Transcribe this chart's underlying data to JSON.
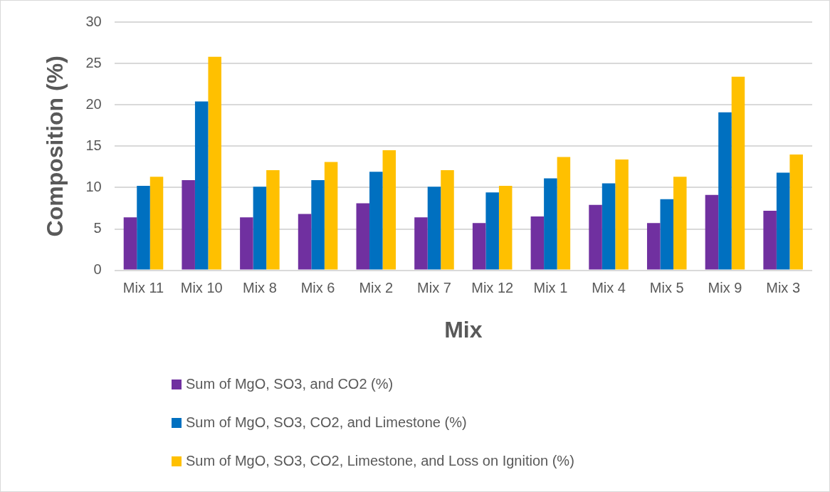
{
  "chart_data": {
    "type": "bar",
    "xlabel": "Mix",
    "ylabel": "Composition (%)",
    "categories": [
      "Mix 11",
      "Mix 10",
      "Mix 8",
      "Mix 6",
      "Mix 2",
      "Mix 7",
      "Mix 12",
      "Mix 1",
      "Mix 4",
      "Mix 5",
      "Mix 9",
      "Mix 3"
    ],
    "series": [
      {
        "name": "Sum of MgO, SO3, and CO2 (%)",
        "color": "#7030a0",
        "values": [
          6.4,
          10.9,
          6.4,
          6.8,
          8.1,
          6.4,
          5.7,
          6.5,
          7.9,
          5.7,
          9.1,
          7.2
        ]
      },
      {
        "name": "Sum of MgO, SO3, CO2, and Limestone (%)",
        "color": "#0070c0",
        "values": [
          10.2,
          20.4,
          10.1,
          10.9,
          11.9,
          10.1,
          9.4,
          11.1,
          10.5,
          8.6,
          19.1,
          11.8
        ]
      },
      {
        "name": "Sum of MgO, SO3, CO2, Limestone, and Loss on Ignition (%)",
        "color": "#ffc000",
        "values": [
          11.3,
          25.8,
          12.1,
          13.1,
          14.5,
          12.1,
          10.2,
          13.7,
          13.4,
          11.3,
          23.4,
          14.0
        ]
      }
    ],
    "ylim": [
      0,
      30
    ],
    "yticks": [
      0,
      5,
      10,
      15,
      20,
      25,
      30
    ],
    "grid": "y",
    "legend": "bottom"
  }
}
